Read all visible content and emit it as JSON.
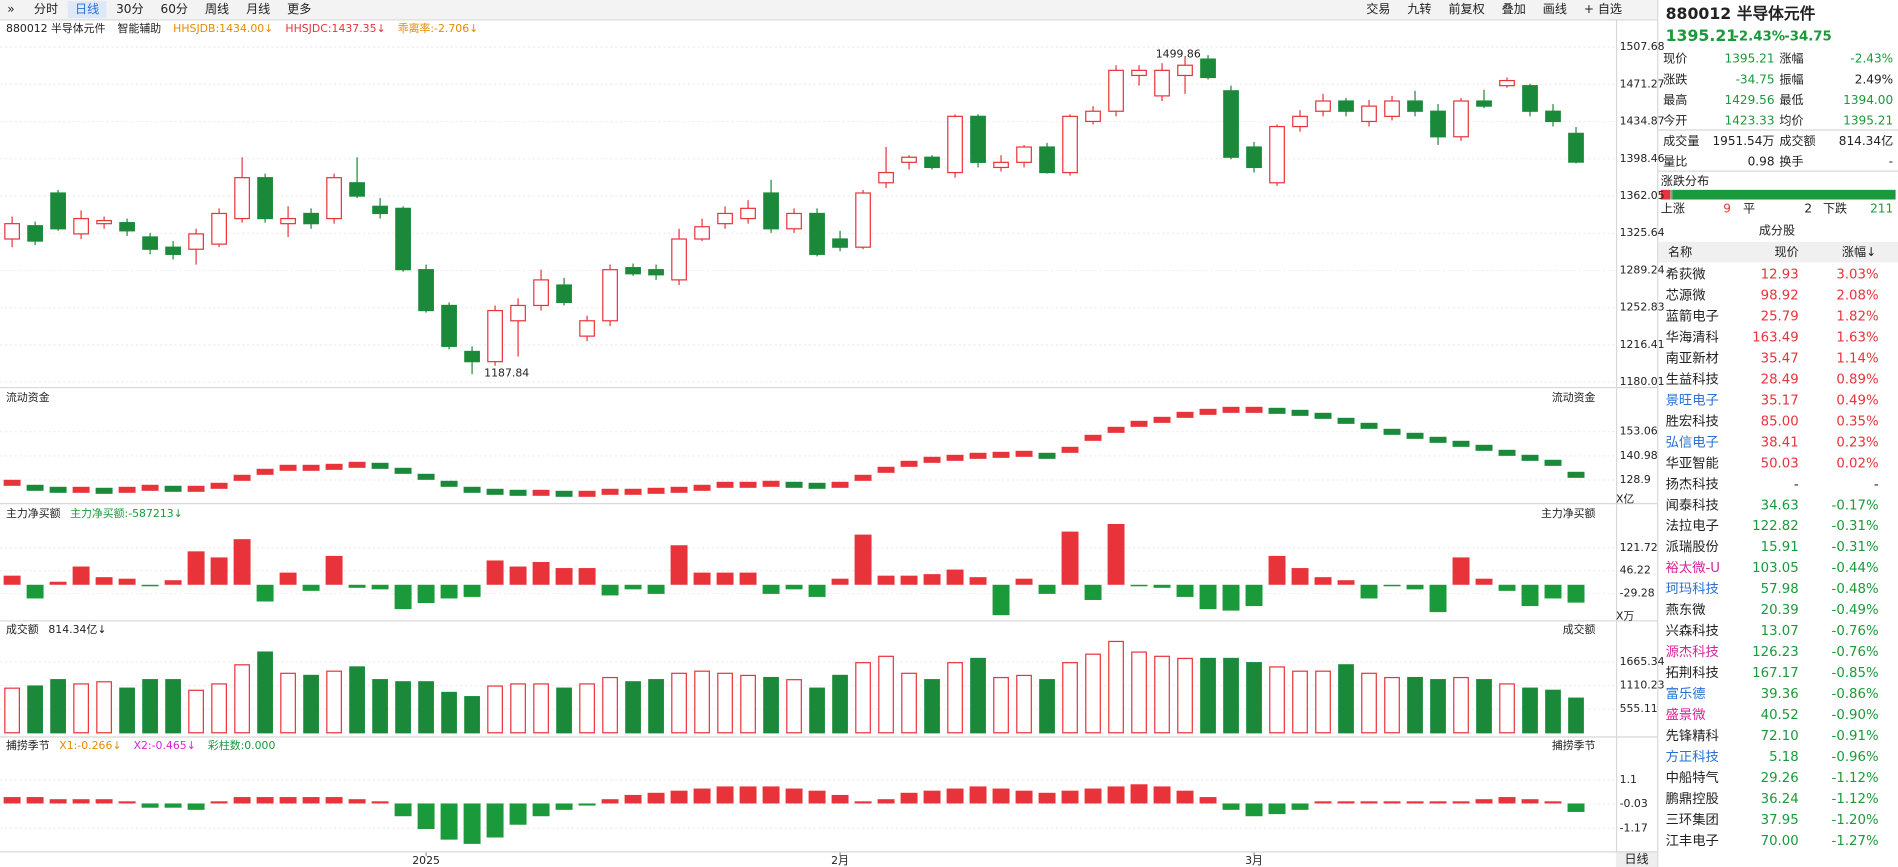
{
  "toolbar": {
    "left": [
      "分时",
      "日线",
      "30分",
      "60分",
      "周线",
      "月线",
      "更多"
    ],
    "active": 1,
    "right": [
      "交易",
      "九转",
      "前复权",
      "叠加",
      "画线",
      "+ 自选"
    ]
  },
  "quote": {
    "code": "880012 半导体元件",
    "price": "1395.21",
    "pct": "-2.43%",
    "change": "-34.75",
    "fields": [
      {
        "label": "现价",
        "value": "1395.21",
        "color": "#1a9a3a"
      },
      {
        "label": "涨幅",
        "value": "-2.43%",
        "color": "#1a9a3a"
      },
      {
        "label": "涨跌",
        "value": "-34.75",
        "color": "#1a9a3a"
      },
      {
        "label": "振幅",
        "value": "2.49%",
        "color": "#222222"
      },
      {
        "label": "最高",
        "value": "1429.56",
        "color": "#1a9a3a"
      },
      {
        "label": "最低",
        "value": "1394.00",
        "color": "#1a9a3a"
      },
      {
        "label": "今开",
        "value": "1423.33",
        "color": "#1a9a3a"
      },
      {
        "label": "均价",
        "value": "1395.21",
        "color": "#1a9a3a"
      },
      {
        "label": "成交量",
        "value": "1951.54万",
        "color": "#222222"
      },
      {
        "label": "成交额",
        "value": "814.34亿",
        "color": "#222222"
      },
      {
        "label": "量比",
        "value": "0.98",
        "color": "#222222"
      },
      {
        "label": "换手",
        "value": "-",
        "color": "#222222"
      }
    ]
  },
  "distribution": {
    "title": "涨跌分布",
    "up_label": "上涨",
    "up": 9,
    "flat_label": "平",
    "flat": 2,
    "down_label": "下跌",
    "down": 211
  },
  "constituents": {
    "title": "成分股",
    "headers": [
      "名称",
      "现价",
      "涨幅↓"
    ],
    "rows": [
      {
        "name": "希荻微",
        "price": "12.93",
        "change": "3.03%"
      },
      {
        "name": "芯源微",
        "price": "98.92",
        "change": "2.08%"
      },
      {
        "name": "蓝箭电子",
        "price": "25.79",
        "change": "1.82%"
      },
      {
        "name": "华海清科",
        "price": "163.49",
        "change": "1.63%"
      },
      {
        "name": "南亚新材",
        "price": "35.47",
        "change": "1.14%"
      },
      {
        "name": "生益科技",
        "price": "28.49",
        "change": "0.89%"
      },
      {
        "name": "景旺电子",
        "price": "35.17",
        "change": "0.49%",
        "name_color": "#2a6fd6"
      },
      {
        "name": "胜宏科技",
        "price": "85.00",
        "change": "0.35%"
      },
      {
        "name": "弘信电子",
        "price": "38.41",
        "change": "0.23%",
        "name_color": "#2a6fd6"
      },
      {
        "name": "华亚智能",
        "price": "50.03",
        "change": "0.02%"
      },
      {
        "name": "扬杰科技",
        "price": "-",
        "change": "-"
      },
      {
        "name": "闻泰科技",
        "price": "34.63",
        "change": "-0.17%"
      },
      {
        "name": "法拉电子",
        "price": "122.82",
        "change": "-0.31%"
      },
      {
        "name": "派瑞股份",
        "price": "15.91",
        "change": "-0.31%"
      },
      {
        "name": "裕太微-U",
        "price": "103.05",
        "change": "-0.44%",
        "name_color": "#d6239a"
      },
      {
        "name": "珂玛科技",
        "price": "57.98",
        "change": "-0.48%",
        "name_color": "#2a6fd6"
      },
      {
        "name": "燕东微",
        "price": "20.39",
        "change": "-0.49%"
      },
      {
        "name": "兴森科技",
        "price": "13.07",
        "change": "-0.76%"
      },
      {
        "name": "源杰科技",
        "price": "126.23",
        "change": "-0.76%",
        "name_color": "#d6239a"
      },
      {
        "name": "拓荆科技",
        "price": "167.17",
        "change": "-0.85%"
      },
      {
        "name": "富乐德",
        "price": "39.36",
        "change": "-0.86%",
        "name_color": "#2a6fd6"
      },
      {
        "name": "盛景微",
        "price": "40.52",
        "change": "-0.90%",
        "name_color": "#d6239a"
      },
      {
        "name": "先锋精科",
        "price": "72.10",
        "change": "-0.91%"
      },
      {
        "name": "方正科技",
        "price": "5.18",
        "change": "-0.96%",
        "name_color": "#2a6fd6"
      },
      {
        "name": "中船特气",
        "price": "29.26",
        "change": "-1.12%"
      },
      {
        "name": "鹏鼎控股",
        "price": "36.24",
        "change": "-1.12%"
      },
      {
        "name": "三环集团",
        "price": "37.95",
        "change": "-1.20%"
      },
      {
        "name": "江丰电子",
        "price": "70.00",
        "change": "-1.27%"
      }
    ]
  },
  "period_label": "日线",
  "chart_data": [
    {
      "type": "candlestick",
      "legend": [
        {
          "label": "880012 半导体元件",
          "color": "#222222"
        },
        {
          "label": "智能辅助",
          "color": "#222222"
        },
        {
          "label": "HHSJDB:1434.00↓",
          "color": "#e68a00"
        },
        {
          "label": "HHSJDC:1437.35↓",
          "color": "#e8333a"
        },
        {
          "label": "乖离率:-2.706↓",
          "color": "#e68a00"
        }
      ],
      "up_color": "#e8333a",
      "down_color": "#1a8a3a",
      "ylim": [
        1180.01,
        1507.68
      ],
      "yticks": [
        1180.01,
        1216.41,
        1252.83,
        1289.24,
        1325.64,
        1362.05,
        1398.46,
        1434.87,
        1471.27,
        1507.68
      ],
      "xticks": [
        {
          "value": 18,
          "label": "2025"
        },
        {
          "value": 36,
          "label": "2月"
        },
        {
          "value": 54,
          "label": "3月"
        }
      ],
      "ohlc": [
        [
          1320,
          1342,
          1312,
          1335
        ],
        [
          1333,
          1337,
          1314,
          1318
        ],
        [
          1365,
          1368,
          1328,
          1330
        ],
        [
          1325,
          1348,
          1320,
          1340
        ],
        [
          1335,
          1342,
          1330,
          1338
        ],
        [
          1336,
          1340,
          1323,
          1328
        ],
        [
          1322,
          1326,
          1305,
          1310
        ],
        [
          1312,
          1318,
          1300,
          1305
        ],
        [
          1310,
          1330,
          1295,
          1325
        ],
        [
          1315,
          1350,
          1312,
          1345
        ],
        [
          1340,
          1400,
          1336,
          1380
        ],
        [
          1380,
          1384,
          1336,
          1340
        ],
        [
          1335,
          1352,
          1322,
          1340
        ],
        [
          1345,
          1350,
          1330,
          1335
        ],
        [
          1340,
          1384,
          1335,
          1380
        ],
        [
          1375,
          1400,
          1360,
          1362
        ],
        [
          1352,
          1360,
          1340,
          1345
        ],
        [
          1350,
          1352,
          1288,
          1290
        ],
        [
          1290,
          1295,
          1248,
          1250
        ],
        [
          1255,
          1258,
          1212,
          1215
        ],
        [
          1210,
          1215,
          1187.84,
          1200
        ],
        [
          1200,
          1255,
          1196,
          1250
        ],
        [
          1240,
          1262,
          1205,
          1255
        ],
        [
          1255,
          1290,
          1250,
          1280
        ],
        [
          1275,
          1282,
          1255,
          1258
        ],
        [
          1225,
          1245,
          1220,
          1240
        ],
        [
          1240,
          1295,
          1235,
          1290
        ],
        [
          1292,
          1296,
          1284,
          1286
        ],
        [
          1290,
          1295,
          1280,
          1285
        ],
        [
          1280,
          1330,
          1275,
          1320
        ],
        [
          1320,
          1340,
          1318,
          1332
        ],
        [
          1335,
          1352,
          1330,
          1345
        ],
        [
          1340,
          1358,
          1335,
          1350
        ],
        [
          1365,
          1378,
          1326,
          1330
        ],
        [
          1330,
          1350,
          1326,
          1345
        ],
        [
          1345,
          1350,
          1303,
          1305
        ],
        [
          1320,
          1328,
          1308,
          1312
        ],
        [
          1312,
          1368,
          1310,
          1365
        ],
        [
          1375,
          1410,
          1370,
          1385
        ],
        [
          1395,
          1402,
          1388,
          1400
        ],
        [
          1400,
          1402,
          1388,
          1390
        ],
        [
          1385,
          1442,
          1380,
          1440
        ],
        [
          1440,
          1442,
          1390,
          1395
        ],
        [
          1390,
          1402,
          1386,
          1395
        ],
        [
          1395,
          1412,
          1390,
          1410
        ],
        [
          1410,
          1414,
          1384,
          1385
        ],
        [
          1385,
          1442,
          1382,
          1440
        ],
        [
          1435,
          1450,
          1432,
          1445
        ],
        [
          1445,
          1490,
          1440,
          1485
        ],
        [
          1480,
          1490,
          1470,
          1485
        ],
        [
          1460,
          1492,
          1455,
          1485
        ],
        [
          1480,
          1498,
          1462,
          1490
        ],
        [
          1496,
          1499.86,
          1476,
          1478
        ],
        [
          1465,
          1470,
          1398,
          1400
        ],
        [
          1410,
          1415,
          1385,
          1390
        ],
        [
          1375,
          1432,
          1372,
          1430
        ],
        [
          1430,
          1446,
          1425,
          1440
        ],
        [
          1445,
          1462,
          1440,
          1455
        ],
        [
          1455,
          1458,
          1440,
          1445
        ],
        [
          1435,
          1456,
          1430,
          1450
        ],
        [
          1440,
          1460,
          1436,
          1455
        ],
        [
          1455,
          1465,
          1440,
          1445
        ],
        [
          1445,
          1452,
          1412,
          1420
        ],
        [
          1420,
          1458,
          1416,
          1455
        ],
        [
          1455,
          1466,
          1448,
          1450
        ],
        [
          1470,
          1478,
          1468,
          1475
        ],
        [
          1470,
          1472,
          1440,
          1445
        ],
        [
          1445,
          1452,
          1430,
          1435
        ],
        [
          1423.33,
          1429.56,
          1394,
          1395.21
        ]
      ]
    },
    {
      "type": "dash",
      "title": "流动资金",
      "unit": "X亿",
      "up_color": "#e8333a",
      "down_color": "#1a8a3a",
      "ylim": [
        119.2,
        169.4
      ],
      "yticks": [
        128.9,
        140.98,
        153.06
      ],
      "values": [
        127.5,
        125,
        124,
        124,
        123.5,
        124,
        125,
        124.5,
        124.5,
        126,
        130,
        133,
        135,
        135,
        135.5,
        136.5,
        136,
        133.5,
        130.5,
        127,
        124,
        123,
        122.5,
        122.5,
        122,
        122,
        123,
        123,
        123.5,
        124,
        125,
        126.5,
        126.5,
        127,
        126.5,
        126,
        126.5,
        130,
        134,
        137,
        139,
        140,
        141,
        141.5,
        142,
        141,
        144,
        150,
        154,
        157,
        159,
        161.5,
        163,
        164,
        164,
        163.5,
        162.5,
        161,
        158.5,
        156,
        153,
        151,
        149,
        147,
        145,
        142.5,
        140,
        137.5,
        131.5
      ]
    },
    {
      "type": "bar",
      "title": "主力净买额",
      "legend": [
        {
          "label": "主力净买额:-587213↓",
          "color": "#1a9a3a"
        }
      ],
      "unit": "X万",
      "up_color": "#e8333a",
      "down_color": "#1a9a3a",
      "ylim": [
        -105,
        253
      ],
      "yticks": [
        -29.28,
        46.22,
        121.72
      ],
      "values": [
        30,
        -45,
        10,
        60,
        25,
        20,
        -5,
        15,
        110,
        90,
        150,
        -55,
        40,
        -20,
        95,
        -10,
        -15,
        -80,
        -60,
        -45,
        -40,
        80,
        60,
        75,
        55,
        55,
        -35,
        -15,
        -30,
        130,
        40,
        40,
        40,
        -30,
        -15,
        -40,
        20,
        165,
        30,
        30,
        35,
        50,
        25,
        -100,
        20,
        -30,
        175,
        -50,
        200,
        -5,
        -10,
        -40,
        -80,
        -85,
        -70,
        95,
        55,
        25,
        15,
        -45,
        -5,
        -15,
        -90,
        90,
        20,
        -20,
        -70,
        -45,
        -58.72
      ]
    },
    {
      "type": "volume",
      "title": "成交额",
      "legend": [
        {
          "label": "814.34亿↓",
          "color": "#222222"
        }
      ],
      "ylim": [
        0,
        2448
      ],
      "yticks": [
        555.11,
        1110.23,
        1665.34
      ],
      "values": [
        1050,
        1100,
        1250,
        1150,
        1200,
        1050,
        1250,
        1250,
        1000,
        1150,
        1600,
        1900,
        1400,
        1350,
        1450,
        1550,
        1250,
        1200,
        1200,
        950,
        850,
        1100,
        1150,
        1150,
        1050,
        1150,
        1300,
        1200,
        1250,
        1400,
        1450,
        1400,
        1350,
        1300,
        1250,
        1050,
        1350,
        1650,
        1800,
        1400,
        1250,
        1650,
        1750,
        1300,
        1350,
        1250,
        1650,
        1850,
        2150,
        1900,
        1800,
        1750,
        1750,
        1750,
        1650,
        1550,
        1450,
        1450,
        1600,
        1400,
        1300,
        1300,
        1250,
        1300,
        1250,
        1150,
        1050,
        1000,
        814.34
      ]
    },
    {
      "type": "bar",
      "title": "捕捞季节",
      "legend": [
        {
          "label": "X1:-0.266↓",
          "color": "#e68a00"
        },
        {
          "label": "X2:-0.465↓",
          "color": "#d623d6"
        },
        {
          "label": "彩柱数:0.000",
          "color": "#1a9a3a"
        }
      ],
      "up_color": "#e8333a",
      "down_color": "#1a9a3a",
      "ylim": [
        -2.19,
        2.24
      ],
      "yticks": [
        -1.17,
        -0.03,
        1.1
      ],
      "values": [
        0.3,
        0.3,
        0.2,
        0.2,
        0.2,
        0.1,
        -0.2,
        -0.2,
        -0.3,
        0.1,
        0.3,
        0.3,
        0.3,
        0.3,
        0.3,
        0.2,
        0.1,
        -0.6,
        -1.2,
        -1.7,
        -1.9,
        -1.6,
        -1,
        -0.6,
        -0.3,
        -0.1,
        0.2,
        0.4,
        0.5,
        0.6,
        0.7,
        0.8,
        0.8,
        0.8,
        0.7,
        0.6,
        0.4,
        0.1,
        0.2,
        0.5,
        0.6,
        0.7,
        0.8,
        0.7,
        0.6,
        0.5,
        0.6,
        0.7,
        0.8,
        0.9,
        0.8,
        0.6,
        0.3,
        -0.3,
        -0.6,
        -0.5,
        -0.3,
        0.1,
        0.1,
        0.1,
        0.1,
        0.1,
        0.1,
        0.1,
        0.2,
        0.3,
        0.2,
        0.1,
        -0.4
      ]
    }
  ]
}
